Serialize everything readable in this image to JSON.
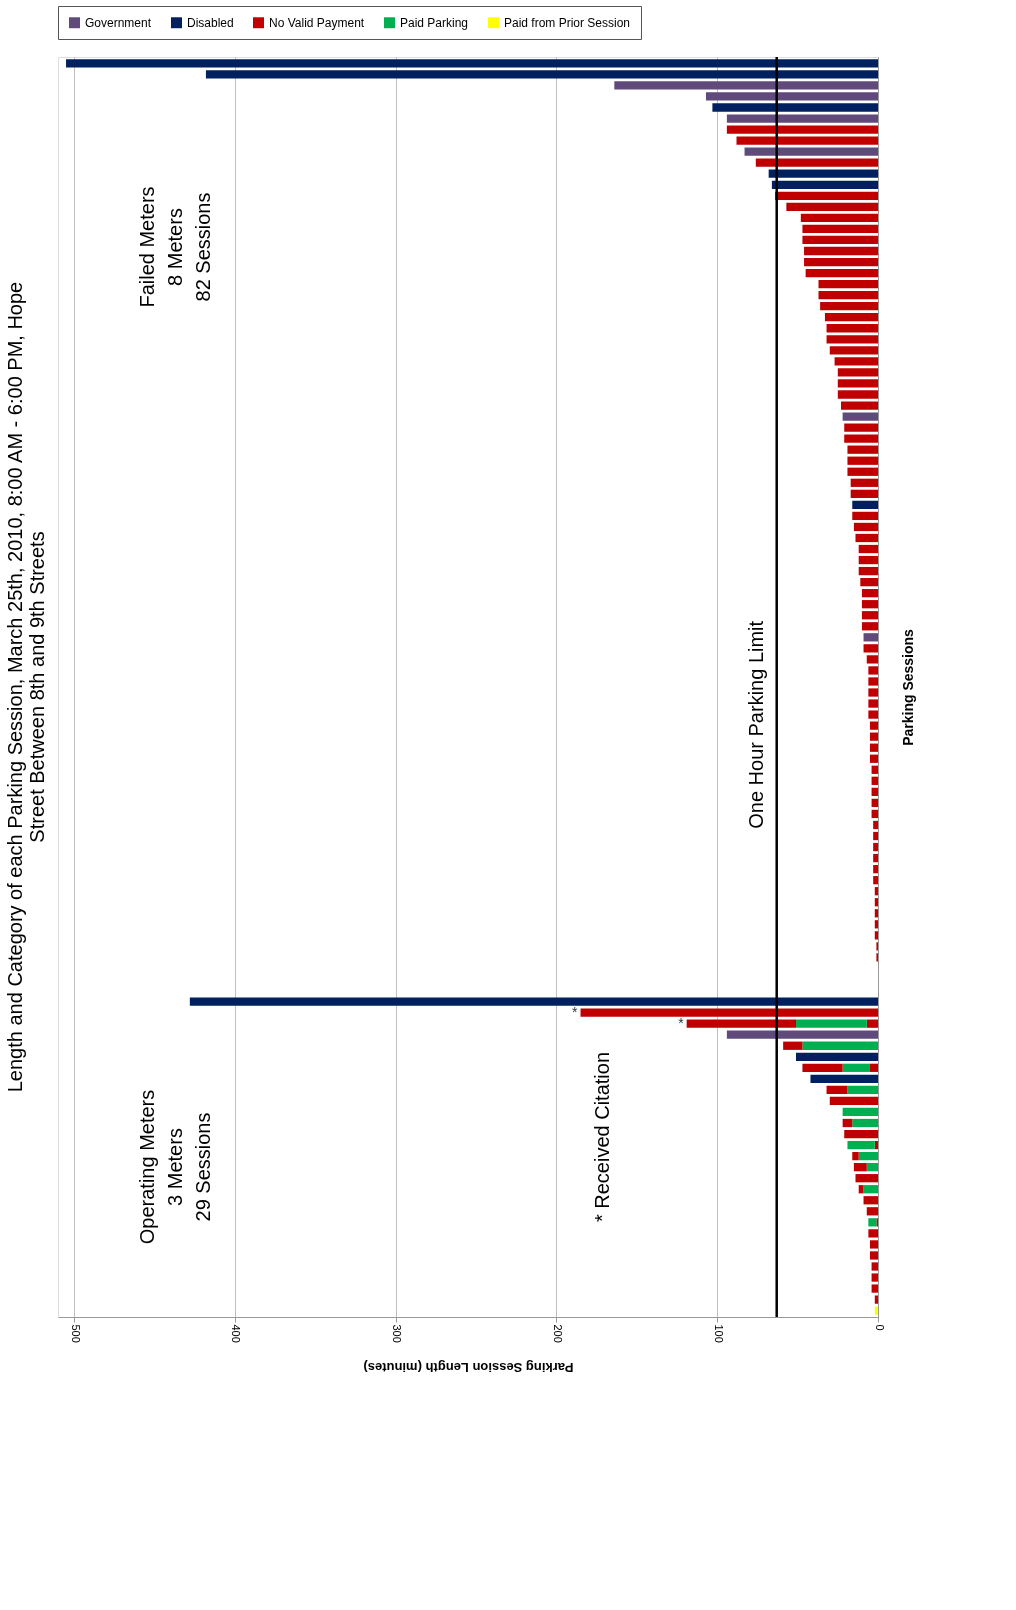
{
  "chart_data": {
    "type": "bar",
    "orientation": "horizontal",
    "stacked": true,
    "title": "Length and Category of each Parking Session, March 25th, 2010, 8:00 AM - 6:00 PM, Hope Street Between 8th and 9th Streets",
    "xlabel": "Parking Session Length (minutes)",
    "ylabel": "Parking Sessions",
    "categories": [
      null,
      null,
      null,
      null,
      null,
      null,
      null,
      null,
      null,
      null,
      null,
      null,
      null,
      null,
      null,
      null,
      null,
      null,
      null,
      null,
      null,
      null,
      null,
      null,
      null,
      null,
      null,
      null,
      null,
      null,
      null,
      null,
      null,
      null,
      null,
      null,
      null,
      null,
      null,
      null,
      null,
      null,
      null,
      null,
      null,
      null,
      null,
      null,
      null,
      null,
      null,
      null,
      null,
      null,
      null,
      null,
      null,
      null,
      null,
      null,
      null,
      null,
      null,
      null,
      null,
      null,
      null,
      null,
      null,
      null,
      null,
      null,
      null,
      null,
      null,
      null,
      null,
      null,
      null,
      null,
      null,
      null,
      null,
      null,
      null,
      null,
      null,
      null,
      null,
      null,
      null,
      null,
      null,
      null,
      null,
      null,
      null,
      null,
      null,
      null,
      null,
      null,
      null,
      null,
      null,
      null,
      null,
      null,
      null,
      null,
      null,
      null,
      null,
      null
    ],
    "xlim": [
      510,
      0
    ],
    "xticks": [
      0,
      100,
      200,
      300,
      400,
      500
    ],
    "grid": "x",
    "legend": "top",
    "tick_labels": "x",
    "series": [
      {
        "name": "Government",
        "color": "#604a7b",
        "values": [
          null,
          null,
          164,
          107,
          null,
          94,
          null,
          null,
          83,
          null,
          null,
          null,
          null,
          null,
          null,
          null,
          null,
          null,
          null,
          null,
          null,
          null,
          null,
          null,
          null,
          null,
          null,
          null,
          null,
          null,
          null,
          null,
          22,
          null,
          null,
          null,
          null,
          null,
          null,
          null,
          null,
          null,
          null,
          null,
          null,
          null,
          null,
          null,
          null,
          null,
          null,
          null,
          9,
          null,
          null,
          null,
          null,
          null,
          null,
          null,
          null,
          null,
          null,
          null,
          null,
          null,
          null,
          null,
          null,
          null,
          null,
          null,
          null,
          null,
          null,
          null,
          null,
          null,
          null,
          null,
          null,
          null,
          null,
          null,
          null,
          null,
          null,
          null,
          94,
          null,
          null,
          null,
          null,
          null,
          null,
          null,
          null,
          null,
          null,
          null,
          null,
          null,
          null,
          null,
          null,
          null,
          null,
          null,
          null,
          null,
          null,
          null,
          null,
          null
        ]
      },
      {
        "name": "Disabled",
        "color": "#002060",
        "values": [
          505,
          418,
          null,
          null,
          103,
          null,
          null,
          null,
          null,
          null,
          68,
          66,
          null,
          null,
          null,
          null,
          null,
          null,
          null,
          null,
          null,
          null,
          null,
          null,
          null,
          null,
          null,
          null,
          null,
          null,
          null,
          null,
          null,
          null,
          null,
          null,
          null,
          null,
          null,
          null,
          16,
          null,
          null,
          null,
          null,
          null,
          null,
          null,
          null,
          null,
          null,
          null,
          null,
          null,
          null,
          null,
          null,
          null,
          null,
          null,
          null,
          null,
          null,
          null,
          null,
          null,
          null,
          null,
          null,
          null,
          null,
          null,
          null,
          null,
          null,
          null,
          null,
          null,
          null,
          null,
          null,
          null,
          null,
          null,
          null,
          428,
          null,
          null,
          null,
          null,
          51,
          null,
          42,
          null,
          null,
          null,
          null,
          null,
          null,
          null,
          null,
          null,
          null,
          null,
          null,
          null,
          null,
          null,
          null,
          null,
          null,
          null,
          null,
          null
        ]
      },
      {
        "name": "No Valid Payment",
        "color": "#c00000",
        "values": [
          null,
          null,
          null,
          null,
          null,
          null,
          94,
          88,
          null,
          76,
          null,
          null,
          64,
          57,
          48,
          47,
          47,
          46,
          46,
          45,
          37,
          37,
          36,
          33,
          32,
          32,
          30,
          27,
          25,
          25,
          25,
          23,
          null,
          21,
          21,
          19,
          19,
          19,
          17,
          17,
          null,
          16,
          15,
          14,
          12,
          12,
          12,
          11,
          10,
          10,
          10,
          10,
          null,
          9,
          7,
          6,
          6,
          6,
          6,
          6,
          5,
          5,
          5,
          5,
          4,
          4,
          4,
          4,
          4,
          3,
          3,
          3,
          3,
          3,
          3,
          2,
          2,
          2,
          2,
          2,
          1,
          1,
          null,
          null,
          null,
          null,
          185,
          7,
          null,
          null,
          null,
          5,
          null,
          null,
          30,
          null,
          null,
          21,
          2,
          null,
          null,
          14,
          null,
          9,
          7,
          1,
          6,
          5,
          5,
          4,
          4,
          4,
          2,
          null
        ],
        "value_labels": [
          null,
          null,
          null,
          null,
          null,
          null,
          null,
          null,
          null,
          null,
          null,
          null,
          null,
          null,
          null,
          null,
          null,
          null,
          null,
          null,
          null,
          null,
          null,
          null,
          null,
          null,
          null,
          null,
          null,
          null,
          null,
          null,
          null,
          null,
          null,
          null,
          null,
          null,
          null,
          null,
          null,
          null,
          null,
          null,
          null,
          null,
          null,
          null,
          null,
          null,
          null,
          null,
          null,
          null,
          null,
          null,
          null,
          null,
          null,
          null,
          null,
          null,
          null,
          null,
          null,
          null,
          null,
          null,
          null,
          null,
          null,
          null,
          null,
          null,
          null,
          null,
          null,
          null,
          null,
          null,
          null,
          null,
          null,
          null,
          null,
          null,
          "*",
          null,
          null,
          null,
          null,
          null,
          null,
          null,
          null,
          null,
          null,
          null,
          null,
          null,
          null,
          null,
          null,
          null,
          null,
          null,
          null,
          null,
          null,
          null,
          null,
          null,
          null,
          null
        ]
      },
      {
        "name": "Paid Parking",
        "color": "#00b050",
        "values": [
          null,
          null,
          null,
          null,
          null,
          null,
          null,
          null,
          null,
          null,
          null,
          null,
          null,
          null,
          null,
          null,
          null,
          null,
          null,
          null,
          null,
          null,
          null,
          null,
          null,
          null,
          null,
          null,
          null,
          null,
          null,
          null,
          null,
          null,
          null,
          null,
          null,
          null,
          null,
          null,
          null,
          null,
          null,
          null,
          null,
          null,
          null,
          null,
          null,
          null,
          null,
          null,
          null,
          null,
          null,
          null,
          null,
          null,
          null,
          null,
          null,
          null,
          null,
          null,
          null,
          null,
          null,
          null,
          null,
          null,
          null,
          null,
          null,
          null,
          null,
          null,
          null,
          null,
          null,
          null,
          null,
          null,
          null,
          null,
          null,
          null,
          null,
          44,
          null,
          47,
          null,
          17,
          null,
          19,
          null,
          22,
          16,
          null,
          17,
          12,
          7,
          null,
          9,
          null,
          null,
          5,
          null,
          null,
          null,
          null,
          null,
          null,
          null,
          null
        ]
      },
      {
        "name": "Paid from Prior Session",
        "color": "#ffff00",
        "values": [
          null,
          null,
          null,
          null,
          null,
          null,
          null,
          null,
          null,
          null,
          null,
          null,
          null,
          null,
          null,
          null,
          null,
          null,
          null,
          null,
          null,
          null,
          null,
          null,
          null,
          null,
          null,
          null,
          null,
          null,
          null,
          null,
          null,
          null,
          null,
          null,
          null,
          null,
          null,
          null,
          null,
          null,
          null,
          null,
          null,
          null,
          null,
          null,
          null,
          null,
          null,
          null,
          null,
          null,
          null,
          null,
          null,
          null,
          null,
          null,
          null,
          null,
          null,
          null,
          null,
          null,
          null,
          null,
          null,
          null,
          null,
          null,
          null,
          null,
          null,
          null,
          null,
          null,
          null,
          null,
          null,
          null,
          null,
          null,
          null,
          null,
          null,
          null,
          null,
          null,
          null,
          null,
          null,
          null,
          null,
          null,
          null,
          null,
          null,
          null,
          null,
          null,
          null,
          null,
          null,
          null,
          null,
          null,
          null,
          null,
          null,
          null,
          null,
          2
        ]
      },
      {
        "color": "#c00000",
        "values": [
          null,
          null,
          null,
          null,
          null,
          null,
          null,
          null,
          null,
          null,
          null,
          null,
          null,
          null,
          null,
          null,
          null,
          null,
          null,
          null,
          null,
          null,
          null,
          null,
          null,
          null,
          null,
          null,
          null,
          null,
          null,
          null,
          null,
          null,
          null,
          null,
          null,
          null,
          null,
          null,
          null,
          null,
          null,
          null,
          null,
          null,
          null,
          null,
          null,
          null,
          null,
          null,
          null,
          null,
          null,
          null,
          null,
          null,
          null,
          null,
          null,
          null,
          null,
          null,
          null,
          null,
          null,
          null,
          null,
          null,
          null,
          null,
          null,
          null,
          null,
          null,
          null,
          null,
          null,
          null,
          null,
          null,
          null,
          null,
          null,
          null,
          null,
          68,
          null,
          12,
          null,
          25,
          null,
          13,
          null,
          null,
          6,
          null,
          null,
          4,
          8,
          null,
          3,
          null,
          null,
          null,
          null,
          null,
          null,
          null,
          null,
          null,
          null,
          null
        ],
        "value_labels": [
          null,
          null,
          null,
          null,
          null,
          null,
          null,
          null,
          null,
          null,
          null,
          null,
          null,
          null,
          null,
          null,
          null,
          null,
          null,
          null,
          null,
          null,
          null,
          null,
          null,
          null,
          null,
          null,
          null,
          null,
          null,
          null,
          null,
          null,
          null,
          null,
          null,
          null,
          null,
          null,
          null,
          null,
          null,
          null,
          null,
          null,
          null,
          null,
          null,
          null,
          null,
          null,
          null,
          null,
          null,
          null,
          null,
          null,
          null,
          null,
          null,
          null,
          null,
          null,
          null,
          null,
          null,
          null,
          null,
          null,
          null,
          null,
          null,
          null,
          null,
          null,
          null,
          null,
          null,
          null,
          null,
          null,
          null,
          null,
          null,
          null,
          null,
          "*",
          null,
          null,
          null,
          null,
          null,
          null,
          null,
          null,
          null,
          null,
          null,
          null,
          null,
          null,
          null,
          null,
          null,
          null,
          null,
          null,
          null,
          null,
          null,
          null,
          null,
          null
        ]
      }
    ],
    "ref_lines": [
      {
        "axis": "x",
        "value": 63,
        "label": "One Hour Parking Limit",
        "color": "#000000"
      }
    ],
    "annotations": [
      "Failed Meters\n8 Meters\n82 Sessions",
      "Operating Meters\n3 Meters\n29 Sessions",
      "* Received Citation"
    ]
  }
}
